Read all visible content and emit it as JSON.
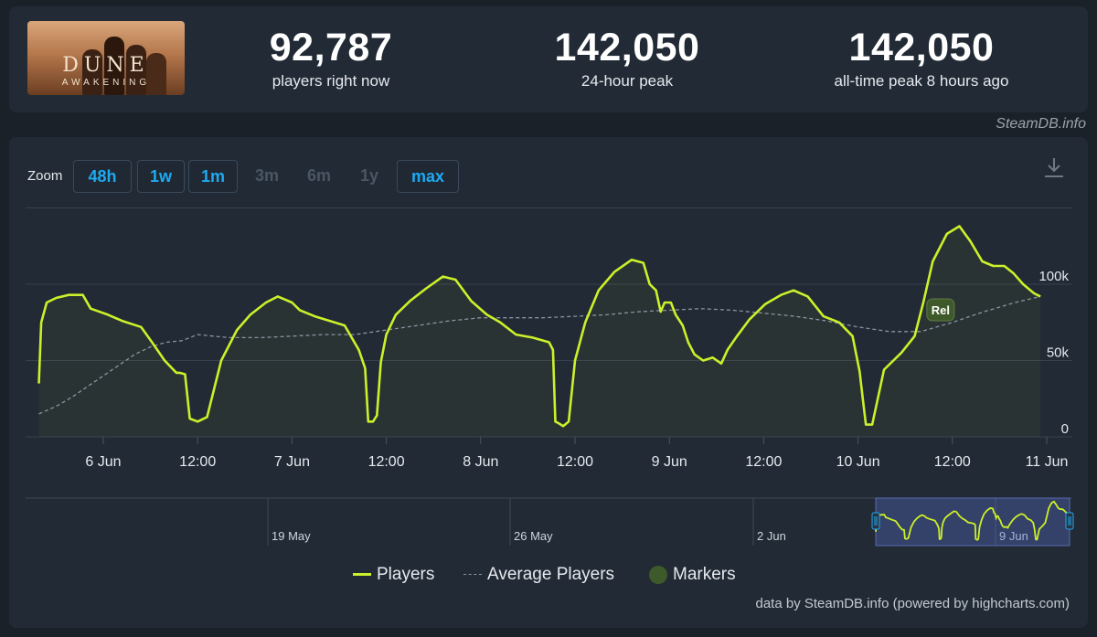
{
  "stats": [
    {
      "value": "92,787",
      "label": "players right now"
    },
    {
      "value": "142,050",
      "label": "24-hour peak"
    },
    {
      "value": "142,050",
      "label": "all-time peak 8 hours ago"
    }
  ],
  "game_logo": {
    "title": "DUNE",
    "subtitle": "AWAKENING"
  },
  "source_top": "SteamDB.info",
  "zoom": {
    "label": "Zoom",
    "options": [
      {
        "label": "48h",
        "enabled": true
      },
      {
        "label": "1w",
        "enabled": true
      },
      {
        "label": "1m",
        "enabled": true
      },
      {
        "label": "3m",
        "enabled": false
      },
      {
        "label": "6m",
        "enabled": false
      },
      {
        "label": "1y",
        "enabled": false
      },
      {
        "label": "max",
        "enabled": true
      }
    ]
  },
  "marker_label": "Rel",
  "navigator": {
    "ticks": [
      "19 May",
      "26 May",
      "2 Jun",
      "9 Jun"
    ]
  },
  "legend": {
    "players": "Players",
    "average": "Average Players",
    "markers": "Markers"
  },
  "source_bottom": "data by SteamDB.info (powered by highcharts.com)",
  "colors": {
    "players": "#ccf02a",
    "average": "#8a939e",
    "marker": "#3e5a2a",
    "zoom_active": "#1eaaf1",
    "background": "#1b2129",
    "panel": "#212a35"
  },
  "chart_data": {
    "type": "line",
    "x_unit": "hours since 6 Jun 00:00 (axis ticks: 6 Jun, 12:00, 7 Jun ...)",
    "x_tick_labels": [
      "6 Jun",
      "12:00",
      "7 Jun",
      "12:00",
      "8 Jun",
      "12:00",
      "9 Jun",
      "12:00",
      "10 Jun",
      "12:00",
      "11 Jun"
    ],
    "y_tick_labels": [
      "0",
      "50k",
      "100k"
    ],
    "ylim": [
      0,
      150000
    ],
    "grid": true,
    "legend_position": "bottom-center",
    "series": [
      {
        "name": "Players",
        "x": [
          -8.2,
          -7.9,
          -7.2,
          -6,
          -4.4,
          -2.6,
          -1.6,
          0.6,
          2.4,
          4.8,
          6.2,
          7.8,
          9.1,
          9.3,
          9.7,
          10.4,
          11,
          12,
          13.2,
          15,
          17,
          18.7,
          20.7,
          22.2,
          24,
          25,
          26.9,
          28.8,
          30.7,
          32.5,
          33.3,
          33.7,
          34.3,
          34.8,
          35.3,
          36,
          37.2,
          39,
          41,
          43.2,
          44.8,
          46.8,
          48.8,
          50.5,
          52.5,
          54.6,
          56.7,
          57.2,
          57.5,
          57.9,
          58.5,
          59.2,
          60,
          61.3,
          63,
          65,
          67.2,
          68.7,
          69.5,
          70.3,
          70.9,
          71.4,
          72.2,
          72.8,
          73.7,
          74.4,
          75.2,
          76.3,
          77.5,
          78.6,
          79.4,
          80.6,
          82.2,
          84.2,
          86.2,
          87.8,
          89.6,
          91.6,
          93.6,
          95.3,
          96.2,
          96.6,
          97,
          97.8,
          99.3,
          101.5,
          103.2,
          104.3,
          105.5,
          107.3,
          108.9,
          110.3,
          111.8,
          113.2,
          114.6,
          115.8,
          117,
          118.4,
          119.2
        ],
        "y": [
          35000,
          75000,
          88000,
          91000,
          93000,
          93000,
          84000,
          80000,
          76000,
          72000,
          62000,
          50000,
          43000,
          42000,
          42000,
          41000,
          12000,
          10000,
          13000,
          50000,
          70000,
          80000,
          88000,
          92000,
          88000,
          83000,
          79000,
          76000,
          73000,
          57000,
          45000,
          10000,
          10000,
          14000,
          49000,
          67000,
          80000,
          89000,
          97000,
          105000,
          103000,
          89000,
          80000,
          75000,
          67000,
          65000,
          62000,
          57000,
          10000,
          9000,
          7000,
          10000,
          50000,
          75000,
          96000,
          108000,
          116000,
          114000,
          100000,
          96000,
          82000,
          88000,
          88000,
          80000,
          73000,
          62000,
          54000,
          50000,
          52000,
          48000,
          57000,
          66000,
          77000,
          87000,
          93000,
          96000,
          92000,
          79000,
          75000,
          66000,
          43000,
          25000,
          8000,
          8000,
          44000,
          55000,
          66000,
          88000,
          115000,
          133000,
          138000,
          128000,
          115000,
          112000,
          112000,
          107000,
          100000,
          94000,
          92000
        ]
      },
      {
        "name": "Average Players",
        "x": [
          -8.2,
          -6,
          -4,
          -2,
          0,
          2,
          4,
          6,
          8,
          10,
          12,
          14,
          16,
          20,
          24,
          28,
          32,
          36,
          40,
          44,
          48,
          52,
          56,
          60,
          64,
          68,
          72,
          76,
          80,
          84,
          88,
          92,
          96,
          100,
          104,
          108,
          112,
          116,
          119.2
        ],
        "y": [
          15000,
          20000,
          26000,
          33000,
          40000,
          47000,
          54000,
          59000,
          62000,
          63000,
          67000,
          66000,
          65000,
          65000,
          66000,
          67000,
          67000,
          70000,
          73000,
          76000,
          78000,
          78000,
          78000,
          79000,
          80000,
          82000,
          83000,
          84000,
          83000,
          81000,
          79000,
          76000,
          72000,
          69000,
          69000,
          75000,
          82000,
          88000,
          92000
        ]
      }
    ],
    "markers": [
      {
        "x": 106.5,
        "label": "Rel"
      }
    ],
    "navigator": {
      "tick_labels": [
        "19 May",
        "26 May",
        "2 Jun",
        "9 Jun"
      ],
      "selected_range": "6 Jun – 11 Jun"
    }
  }
}
